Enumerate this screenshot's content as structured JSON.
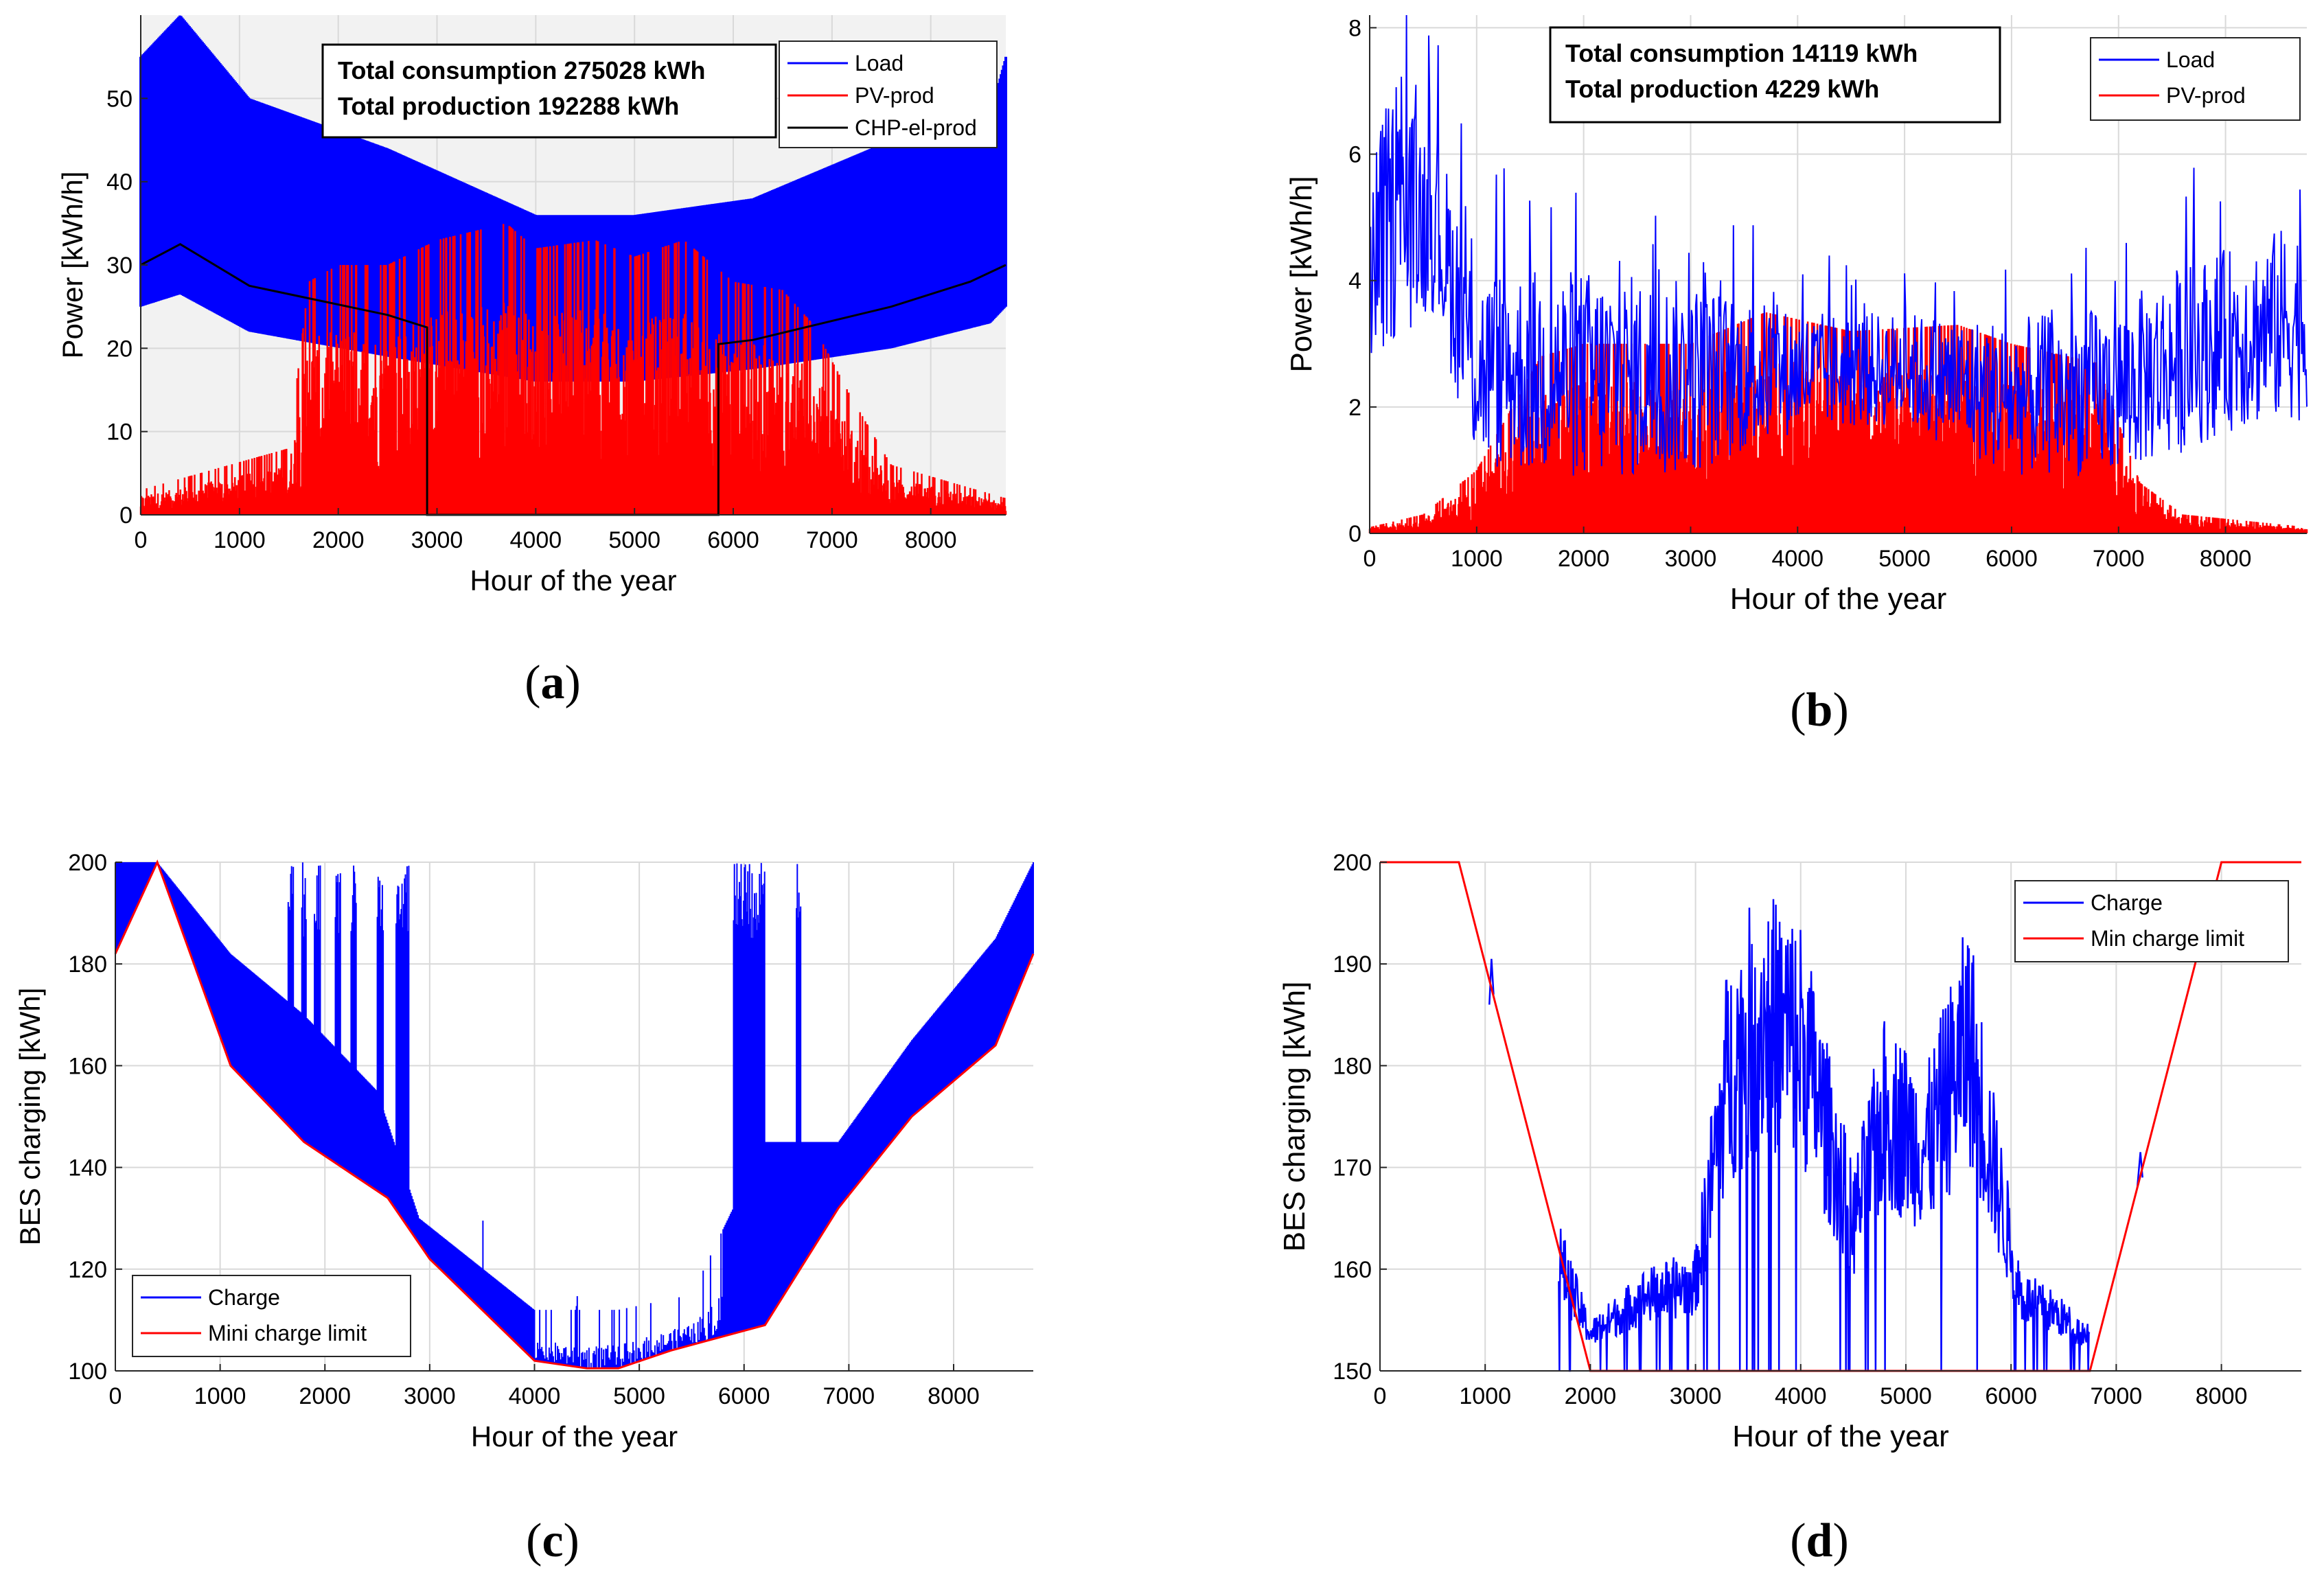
{
  "figure": {
    "labels": {
      "a": {
        "open": "(",
        "letter": "a",
        "close": ")"
      },
      "b": {
        "open": "(",
        "letter": "b",
        "close": ")"
      },
      "c": {
        "open": "(",
        "letter": "c",
        "close": ")"
      },
      "d": {
        "open": "(",
        "letter": "d",
        "close": ")"
      }
    }
  },
  "colors": {
    "load": "#0000ff",
    "pv": "#ff0000",
    "chp": "#000000",
    "grid": "#d9d9d9",
    "plot_bg_a": "#f2f2f2",
    "plot_bg": "#ffffff"
  },
  "chart_data": [
    {
      "id": "a",
      "type": "area",
      "xlabel": "Hour of the year",
      "ylabel": "Power [kWh/h]",
      "xlim": [
        0,
        8760
      ],
      "ylim": [
        0,
        60
      ],
      "xticks": [
        0,
        1000,
        2000,
        3000,
        4000,
        5000,
        6000,
        7000,
        8000
      ],
      "yticks": [
        0,
        10,
        20,
        30,
        40,
        50
      ],
      "textbox": [
        "Total consumption 275028 kWh",
        "Total production 192288 kWh"
      ],
      "legend": [
        "Load",
        "PV-prod",
        "CHP-el-prod"
      ],
      "legend_position": "top-right",
      "series": [
        {
          "name": "Load (band upper)",
          "x": [
            0,
            400,
            1100,
            2500,
            4000,
            5000,
            6200,
            7600,
            8600,
            8760
          ],
          "values": [
            55,
            60,
            50,
            44,
            36,
            36,
            38,
            45,
            48,
            55
          ]
        },
        {
          "name": "Load (band lower)",
          "x": [
            0,
            400,
            1100,
            2500,
            4000,
            5000,
            6200,
            7600,
            8600,
            8760
          ],
          "values": [
            25,
            26.5,
            22,
            19,
            16,
            16,
            17.5,
            20,
            23,
            25
          ]
        },
        {
          "name": "PV-prod (envelope)",
          "x": [
            0,
            1500,
            1700,
            2000,
            2500,
            3000,
            3700,
            4000,
            4600,
            5000,
            5500,
            6000,
            6500,
            6800,
            7200,
            7600,
            8760
          ],
          "values": [
            3,
            8,
            28,
            30,
            30,
            33,
            35,
            32,
            33,
            31,
            33,
            28,
            27,
            23,
            14,
            6,
            2
          ]
        },
        {
          "name": "CHP-el-prod",
          "x": [
            0,
            400,
            1100,
            2500,
            2900,
            2900,
            5850,
            5850,
            6200,
            7600,
            8400,
            8760
          ],
          "values": [
            30,
            32.5,
            27.5,
            24,
            22.5,
            0,
            0,
            20.5,
            21,
            25,
            28,
            30
          ]
        }
      ]
    },
    {
      "id": "b",
      "type": "area",
      "xlabel": "Hour of the year",
      "ylabel": "Power [kWh/h]",
      "xlim": [
        0,
        8760
      ],
      "ylim": [
        0,
        8.2
      ],
      "xticks": [
        0,
        1000,
        2000,
        3000,
        4000,
        5000,
        6000,
        7000,
        8000
      ],
      "yticks": [
        0,
        2,
        4,
        6,
        8
      ],
      "textbox": [
        "Total consumption 14119 kWh",
        "Total production 4229 kWh"
      ],
      "legend": [
        "Load",
        "PV-prod"
      ],
      "legend_position": "top-right",
      "series": [
        {
          "name": "Load (band upper)",
          "x": [
            0,
            200,
            600,
            1000,
            2000,
            3000,
            4000,
            5000,
            6000,
            7000,
            7500,
            8000,
            8760
          ],
          "values": [
            6,
            7,
            6.5,
            4.2,
            4.2,
            4,
            3.5,
            3.5,
            3.4,
            3.6,
            4.2,
            4.5,
            5
          ]
        },
        {
          "name": "Load (band lower)",
          "x": [
            0,
            200,
            600,
            1000,
            2000,
            3000,
            4000,
            5000,
            6000,
            7000,
            7500,
            8000,
            8760
          ],
          "values": [
            2.5,
            3,
            3.5,
            1,
            0.8,
            0.9,
            1.6,
            1.7,
            0.9,
            0.9,
            1.2,
            1.6,
            1.8
          ]
        },
        {
          "name": "PV-prod (envelope)",
          "x": [
            0,
            500,
            1000,
            1600,
            2000,
            3000,
            3700,
            4500,
            5500,
            6000,
            6800,
            7200,
            7600,
            8760
          ],
          "values": [
            0.1,
            0.3,
            1,
            2.8,
            3,
            3,
            3.5,
            3.2,
            3.3,
            3,
            2.7,
            0.8,
            0.3,
            0.1
          ]
        }
      ]
    },
    {
      "id": "c",
      "type": "line",
      "xlabel": "Hour of the year",
      "ylabel": "BES charging [kWh]",
      "xlim": [
        0,
        8760
      ],
      "ylim": [
        100,
        200
      ],
      "xticks": [
        0,
        1000,
        2000,
        3000,
        4000,
        5000,
        6000,
        7000,
        8000
      ],
      "yticks": [
        100,
        120,
        140,
        160,
        180,
        200
      ],
      "legend": [
        "Charge",
        "Mini charge limit"
      ],
      "legend_position": "bottom-left",
      "series": [
        {
          "name": "Charge (band upper)",
          "x": [
            0,
            400,
            1100,
            1800,
            2500,
            2900,
            4000,
            4800,
            5500,
            6200,
            6900,
            7600,
            8400,
            8760
          ],
          "values": [
            200,
            200,
            182,
            170,
            155,
            130,
            112,
            112,
            115,
            145,
            145,
            165,
            185,
            200
          ]
        },
        {
          "name": "Mini charge limit",
          "x": [
            0,
            400,
            1100,
            1800,
            2600,
            3000,
            4000,
            4500,
            4800,
            5300,
            6200,
            6900,
            7600,
            8400,
            8760
          ],
          "values": [
            182,
            200,
            160,
            145,
            134,
            122,
            102,
            100.5,
            100.5,
            104,
            109,
            132,
            150,
            164,
            182
          ]
        }
      ]
    },
    {
      "id": "d",
      "type": "line",
      "xlabel": "Hour of the year",
      "ylabel": "BES charging [kWh]",
      "xlim": [
        0,
        8760
      ],
      "ylim": [
        150,
        200
      ],
      "xticks": [
        0,
        1000,
        2000,
        3000,
        4000,
        5000,
        6000,
        7000,
        8000
      ],
      "yticks": [
        150,
        160,
        170,
        180,
        190,
        200
      ],
      "legend": [
        "Charge",
        "Min charge limit"
      ],
      "legend_position": "top-right",
      "series": [
        {
          "name": "Charge (band upper)",
          "x": [
            1700,
            2000,
            2500,
            3000,
            3300,
            3600,
            4000,
            4500,
            4800,
            5200,
            5600,
            5800,
            6100,
            6400,
            6700
          ],
          "values": [
            165,
            155,
            160,
            162,
            190,
            198,
            195,
            170,
            185,
            180,
            195,
            180,
            160,
            158,
            155
          ]
        },
        {
          "name": "Min charge limit",
          "x": [
            0,
            750,
            2000,
            6750,
            8000,
            8760
          ],
          "values": [
            200,
            200,
            150,
            150,
            200,
            200
          ]
        }
      ]
    }
  ]
}
